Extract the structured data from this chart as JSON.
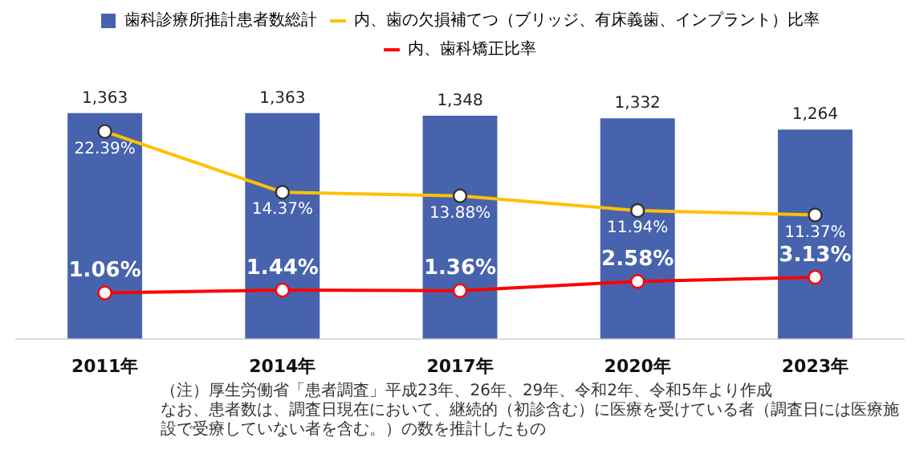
{
  "chart_data": {
    "type": "bar",
    "categories": [
      "2011年",
      "2014年",
      "2017年",
      "2020年",
      "2023年"
    ],
    "series": [
      {
        "name": "歯科診療所推計患者数総計",
        "color": "#4763ad",
        "values": [
          1363,
          1363,
          1348,
          1332,
          1264
        ],
        "value_labels": [
          "1,363",
          "1,363",
          "1,348",
          "1,332",
          "1,264"
        ]
      },
      {
        "name": "内、歯の欠損補てつ（ブリッジ、有床義歯、インプラント）比率",
        "type": "line",
        "axis": "y2",
        "color": "#ffc000",
        "values": [
          22.39,
          14.37,
          13.88,
          11.94,
          11.37
        ],
        "value_labels": [
          "22.39%",
          "14.37%",
          "13.88%",
          "11.94%",
          "11.37%"
        ]
      },
      {
        "name": "内、歯科矯正比率",
        "type": "line",
        "axis": "y2",
        "color": "#ff0000",
        "values": [
          1.06,
          1.44,
          1.36,
          2.58,
          3.13
        ],
        "value_labels": [
          "1.06%",
          "1.44%",
          "1.36%",
          "2.58%",
          "3.13%"
        ]
      }
    ],
    "marker": "circle",
    "legend": "top",
    "grid": false,
    "tick_labels": "x",
    "annotations": [
      "（注）厚生労働省「患者調査」平成23年、26年、29年、令和2年、令和5年より作成",
      "なお、患者数は、調査日現在において、継続的（初診含む）に医療を受けている者（調査日には医療施設で受療していない者を含む。）の数を推計したもの"
    ]
  }
}
